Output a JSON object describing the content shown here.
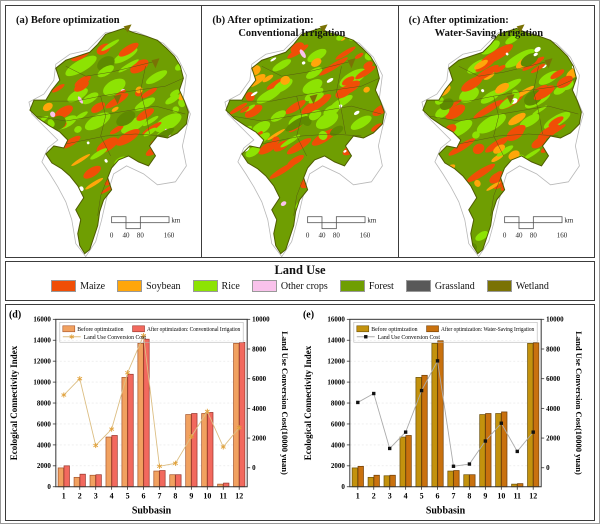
{
  "figure": {
    "maps": [
      {
        "id": "a",
        "title_line1": "(a) Before optimization",
        "title_line2": ""
      },
      {
        "id": "b",
        "title_line1": "(b) After optimization:",
        "title_line2": "Conventional Irrigation"
      },
      {
        "id": "c",
        "title_line1": "(c)  After optimization:",
        "title_line2": "Water-Saving Irrigation"
      }
    ],
    "scalebar": {
      "labels": [
        "0",
        "40",
        "80",
        "160"
      ],
      "unit": "km"
    },
    "land_use_legend": {
      "title": "Land Use",
      "items": [
        {
          "label": "Maize",
          "color": "#F04E06"
        },
        {
          "label": "Soybean",
          "color": "#FFA60A"
        },
        {
          "label": "Rice",
          "color": "#8DE303"
        },
        {
          "label": "Other crops",
          "color": "#F9C2EB"
        },
        {
          "label": "Forest",
          "color": "#6F9E02"
        },
        {
          "label": "Grassland",
          "color": "#595959"
        },
        {
          "label": "Wetland",
          "color": "#7A7205"
        }
      ]
    }
  },
  "chart_data": [
    {
      "id": "d",
      "panel_label": "(d)",
      "type": "bar+line",
      "categories": [
        "1",
        "2",
        "3",
        "4",
        "5",
        "6",
        "7",
        "8",
        "9",
        "10",
        "11",
        "12"
      ],
      "xlabel": "Subbasin",
      "ylabel_left": "Ecological Connectivity Index",
      "ylabel_right": "Land Use Conversion Cost(10000 yuan)",
      "ylim_left": [
        0,
        16000
      ],
      "yticks_left": [
        0,
        2000,
        4000,
        6000,
        8000,
        10000,
        12000,
        14000,
        16000
      ],
      "ylim_right": [
        -1280,
        10000
      ],
      "yticks_right": [
        0,
        2000,
        4000,
        6000,
        8000,
        10000
      ],
      "grid": "horizontal-dashed",
      "legend_position": "top-inside",
      "series": [
        {
          "name": "Before optimization",
          "type": "bar",
          "color": "#F1A160",
          "border": "#A5542A",
          "values": [
            1800,
            900,
            1100,
            4750,
            10450,
            13700,
            1500,
            1150,
            6900,
            7000,
            250,
            13700
          ]
        },
        {
          "name": "After optimization: Conventional Irrigation",
          "type": "bar",
          "color": "#F2695E",
          "border": "#96352C",
          "values": [
            2000,
            1200,
            1150,
            4900,
            10750,
            14100,
            1550,
            1150,
            7000,
            7100,
            350,
            13800
          ]
        },
        {
          "name": "Land Use Conversion Cost",
          "type": "line",
          "axis": "right",
          "color": "#DCBE83",
          "marker": "star",
          "marker_color": "#E1A23C",
          "values": [
            4900,
            6000,
            1500,
            2600,
            6400,
            8900,
            100,
            300,
            2100,
            3800,
            1400,
            2700
          ]
        }
      ]
    },
    {
      "id": "e",
      "panel_label": "(e)",
      "type": "bar+line",
      "categories": [
        "1",
        "2",
        "3",
        "4",
        "5",
        "6",
        "7",
        "8",
        "9",
        "10",
        "11",
        "12"
      ],
      "xlabel": "Subbasin",
      "ylabel_left": "Ecological Connectivity Index",
      "ylabel_right": "Land Use Conversion Cost(10000 yuan)",
      "ylim_left": [
        0,
        16000
      ],
      "yticks_left": [
        0,
        2000,
        4000,
        6000,
        8000,
        10000,
        12000,
        14000,
        16000
      ],
      "ylim_right": [
        -1280,
        10000
      ],
      "yticks_right": [
        0,
        2000,
        4000,
        6000,
        8000,
        10000
      ],
      "grid": "horizontal-dashed",
      "legend_position": "top-inside",
      "series": [
        {
          "name": "Before optimization",
          "type": "bar",
          "color": "#C3920D",
          "border": "#6B500A",
          "values": [
            1800,
            900,
            1050,
            4750,
            10450,
            13700,
            1500,
            1150,
            6900,
            7000,
            250,
            13700
          ]
        },
        {
          "name": "After optimization: Water-Saving Irrigation",
          "type": "bar",
          "color": "#C9710E",
          "border": "#6E3D06",
          "values": [
            1950,
            1100,
            1100,
            4900,
            10650,
            13950,
            1550,
            1150,
            7000,
            7150,
            300,
            13750
          ]
        },
        {
          "name": "Land Use Conversion Cost",
          "type": "line",
          "axis": "right",
          "color": "#ABABAB",
          "marker": "square",
          "marker_color": "#111111",
          "values": [
            4400,
            5000,
            1300,
            2400,
            5200,
            7200,
            100,
            250,
            1800,
            3000,
            1100,
            2400
          ]
        }
      ]
    }
  ]
}
